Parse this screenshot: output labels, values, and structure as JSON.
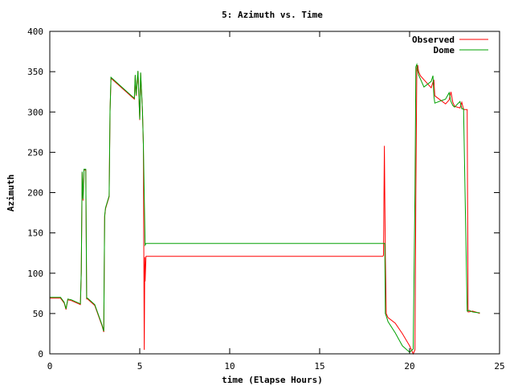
{
  "chart_data": {
    "type": "line",
    "title": "5: Azimuth vs. Time",
    "xlabel": "time (Elapse Hours)",
    "ylabel": "Azimuth",
    "xlim": [
      0,
      25
    ],
    "ylim": [
      0,
      400
    ],
    "xticks": [
      0,
      5,
      10,
      15,
      20,
      25
    ],
    "yticks": [
      0,
      50,
      100,
      150,
      200,
      250,
      300,
      350,
      400
    ],
    "grid": false,
    "legend_position": "top-right",
    "series": [
      {
        "name": "Observed",
        "color": "#ff0000",
        "x": [
          0,
          0.6,
          0.8,
          0.9,
          1.0,
          1.2,
          1.7,
          1.75,
          1.8,
          1.85,
          1.9,
          2.0,
          2.05,
          2.1,
          2.5,
          2.9,
          3.0,
          3.05,
          3.1,
          3.3,
          3.35,
          3.4,
          3.5,
          4.0,
          4.6,
          4.7,
          4.75,
          4.8,
          4.9,
          5.0,
          5.05,
          5.15,
          5.2,
          5.25,
          5.28,
          5.3,
          5.35,
          5.4,
          10.0,
          15.0,
          18.3,
          18.5,
          18.55,
          18.6,
          18.62,
          18.65,
          18.7,
          18.8,
          19.2,
          19.6,
          20.0,
          20.2,
          20.3,
          20.35,
          20.4,
          20.45,
          20.5,
          20.6,
          20.8,
          21.2,
          21.3,
          21.35,
          21.4,
          22.0,
          22.2,
          22.3,
          22.4,
          22.5,
          22.8,
          22.9,
          23.0,
          23.2,
          23.25,
          23.3,
          23.5,
          23.8,
          23.9
        ],
        "y": [
          69,
          69,
          63,
          55,
          67,
          66,
          61,
          100,
          225,
          190,
          228,
          228,
          68,
          68,
          60,
          35,
          27,
          170,
          180,
          195,
          300,
          342,
          340,
          330,
          318,
          316,
          345,
          320,
          350,
          290,
          348,
          300,
          260,
          5,
          120,
          90,
          121,
          121,
          121,
          121,
          121,
          121,
          122,
          258,
          200,
          121,
          50,
          45,
          38,
          25,
          10,
          0,
          5,
          200,
          355,
          358,
          350,
          345,
          340,
          330,
          337,
          340,
          320,
          310,
          315,
          325,
          312,
          307,
          305,
          312,
          303,
          303,
          52,
          52,
          53,
          51,
          50
        ]
      },
      {
        "name": "Dome",
        "color": "#00a000",
        "x": [
          0,
          0.6,
          0.8,
          0.9,
          1.0,
          1.2,
          1.7,
          1.75,
          1.8,
          1.85,
          1.9,
          2.0,
          2.05,
          2.1,
          2.5,
          2.9,
          3.0,
          3.05,
          3.1,
          3.3,
          3.35,
          3.4,
          3.5,
          4.0,
          4.6,
          4.7,
          4.75,
          4.8,
          4.9,
          5.0,
          5.05,
          5.15,
          5.2,
          5.3,
          5.35,
          5.4,
          10.0,
          15.0,
          18.5,
          18.55,
          18.6,
          18.62,
          18.65,
          18.7,
          18.8,
          19.2,
          19.6,
          20.0,
          20.2,
          20.3,
          20.35,
          20.4,
          20.45,
          20.5,
          20.6,
          20.8,
          21.2,
          21.3,
          21.35,
          21.4,
          22.0,
          22.2,
          22.3,
          22.4,
          22.5,
          22.8,
          22.9,
          23.0,
          23.2,
          23.25,
          23.3,
          23.5,
          23.8,
          23.9
        ],
        "y": [
          70,
          70,
          64,
          56,
          68,
          67,
          62,
          102,
          226,
          192,
          229,
          229,
          69,
          69,
          61,
          36,
          28,
          171,
          181,
          196,
          301,
          343,
          341,
          331,
          319,
          317,
          346,
          321,
          351,
          291,
          349,
          301,
          260,
          135,
          137,
          137,
          137,
          137,
          137,
          137,
          137,
          137,
          50,
          47,
          40,
          26,
          10,
          2,
          6,
          201,
          356,
          359,
          351,
          346,
          341,
          331,
          338,
          345,
          320,
          311,
          316,
          324,
          313,
          308,
          306,
          313,
          304,
          304,
          53,
          53,
          54,
          52,
          51,
          51
        ]
      }
    ]
  }
}
